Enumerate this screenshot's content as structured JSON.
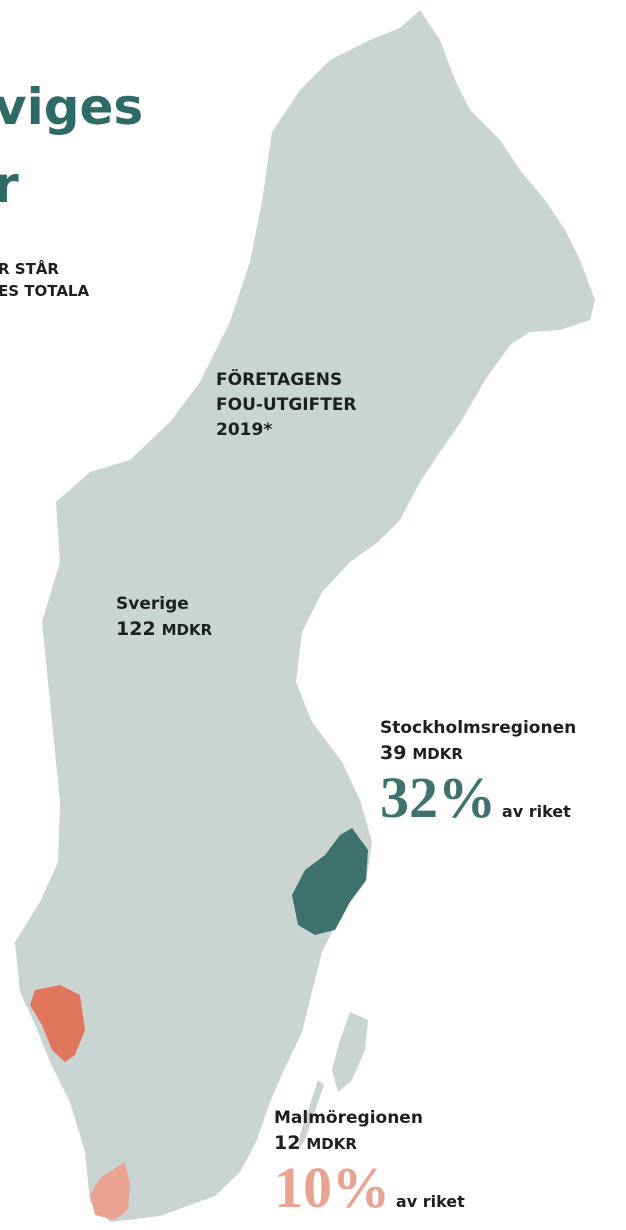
{
  "title": {
    "lines": [
      "viges",
      "r"
    ]
  },
  "subtitle": {
    "lines": [
      "R STÅR",
      "ES TOTALA"
    ]
  },
  "map_label": {
    "lines": [
      "FÖRETAGENS",
      "FOU-UTGIFTER",
      "2019*"
    ]
  },
  "national": {
    "name": "Sverige",
    "amount": "122",
    "unit": "MDKR"
  },
  "regions": [
    {
      "name": "Stockholmsregionen",
      "amount": "39",
      "unit": "MDKR",
      "share": "32%",
      "share_label": "av riket"
    },
    {
      "name": "Malmöregionen",
      "amount": "12",
      "unit": "MDKR",
      "share": "10%",
      "share_label": "av riket"
    }
  ]
}
